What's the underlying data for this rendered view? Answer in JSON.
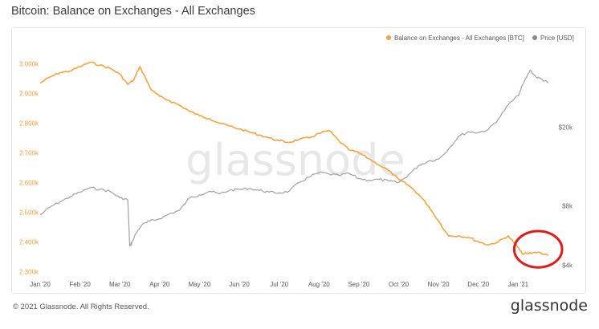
{
  "header": {
    "title": "Bitcoin: Balance on Exchanges - All Exchanges"
  },
  "footer": {
    "copyright": "© 2021 Glassnode. All Rights Reserved.",
    "brand": "glassnode"
  },
  "watermark": "glassnode",
  "colors": {
    "balance": "#f4a340",
    "price": "#a0a0a0",
    "annotation": "#e01b1b",
    "axis_text": "#f0a040",
    "axis_text_right": "#666666"
  },
  "chart_data": {
    "type": "line",
    "title": "Bitcoin: Balance on Exchanges - All Exchanges",
    "legend_position": "top-right",
    "grid": false,
    "x_ticks": [
      "Jan '20",
      "Feb '20",
      "Mar '20",
      "Apr '20",
      "May '20",
      "Jun '20",
      "Jul '20",
      "Aug '20",
      "Sep '20",
      "Oct '20",
      "Nov '20",
      "Dec '20",
      "Jan '21"
    ],
    "x_tick_months": [
      0,
      1,
      2,
      3,
      4,
      5,
      6,
      7,
      8,
      9,
      10,
      11,
      12
    ],
    "x_range_months": [
      0,
      12.9
    ],
    "y_left": {
      "ticks": [
        "2.300k",
        "2.400k",
        "2.500k",
        "2.600k",
        "2.700k",
        "2.800k",
        "2.900k",
        "3.000k"
      ],
      "tick_values": [
        2300000,
        2400000,
        2500000,
        2600000,
        2700000,
        2800000,
        2900000,
        3000000
      ],
      "range": [
        2290000,
        3020000
      ]
    },
    "y_right": {
      "ticks": [
        "$4k",
        "$8k",
        "$20k"
      ],
      "tick_values": [
        4000,
        8000,
        20000
      ],
      "scale": "log",
      "range": [
        3600,
        45000
      ]
    },
    "series": [
      {
        "name": "Balance on Exchanges - All Exchanges [BTC]",
        "axis": "left",
        "x": [
          0,
          0.25,
          0.5,
          0.75,
          1.0,
          1.25,
          1.5,
          1.75,
          2.0,
          2.2,
          2.35,
          2.5,
          2.65,
          2.8,
          3.0,
          3.25,
          3.5,
          3.75,
          4.0,
          4.25,
          4.5,
          4.75,
          5.0,
          5.25,
          5.5,
          5.75,
          6.0,
          6.25,
          6.5,
          6.75,
          7.0,
          7.25,
          7.5,
          7.75,
          8.0,
          8.25,
          8.5,
          8.75,
          9.0,
          9.25,
          9.5,
          9.75,
          10.0,
          10.25,
          10.5,
          10.75,
          11.0,
          11.25,
          11.5,
          11.75,
          12.0,
          12.1,
          12.25,
          12.5,
          12.75
        ],
        "values": [
          2935000,
          2955000,
          2970000,
          2975000,
          2990000,
          3005000,
          2995000,
          2985000,
          2965000,
          2930000,
          2945000,
          2990000,
          2950000,
          2910000,
          2890000,
          2875000,
          2860000,
          2840000,
          2825000,
          2815000,
          2800000,
          2790000,
          2780000,
          2770000,
          2760000,
          2750000,
          2740000,
          2735000,
          2745000,
          2750000,
          2765000,
          2775000,
          2740000,
          2710000,
          2700000,
          2680000,
          2660000,
          2640000,
          2610000,
          2590000,
          2560000,
          2520000,
          2470000,
          2420000,
          2420000,
          2415000,
          2400000,
          2390000,
          2400000,
          2420000,
          2380000,
          2360000,
          2360000,
          2365000,
          2355000
        ]
      },
      {
        "name": "Price [USD]",
        "axis": "right",
        "x": [
          0,
          0.25,
          0.5,
          0.75,
          1.0,
          1.25,
          1.5,
          1.75,
          2.0,
          2.2,
          2.25,
          2.3,
          2.4,
          2.55,
          2.75,
          3.0,
          3.25,
          3.5,
          3.75,
          4.0,
          4.25,
          4.5,
          4.75,
          5.0,
          5.25,
          5.5,
          5.75,
          6.0,
          6.25,
          6.5,
          6.75,
          7.0,
          7.25,
          7.5,
          7.75,
          8.0,
          8.25,
          8.5,
          8.75,
          9.0,
          9.25,
          9.5,
          9.75,
          10.0,
          10.25,
          10.5,
          10.75,
          11.0,
          11.25,
          11.5,
          11.75,
          12.0,
          12.15,
          12.3,
          12.45,
          12.6,
          12.75
        ],
        "values": [
          7200,
          7900,
          8400,
          8900,
          9400,
          9900,
          9700,
          9500,
          8800,
          8600,
          5000,
          5200,
          5800,
          6400,
          6700,
          6900,
          7300,
          7600,
          8800,
          9100,
          9500,
          9200,
          9600,
          9700,
          9800,
          9600,
          9400,
          9300,
          9500,
          10500,
          11200,
          11800,
          11600,
          11400,
          11700,
          11000,
          10800,
          10900,
          10700,
          10500,
          11500,
          12800,
          13500,
          13800,
          15500,
          18000,
          19000,
          18800,
          19500,
          22000,
          26000,
          29000,
          34000,
          39000,
          36000,
          35000,
          33500
        ]
      }
    ],
    "annotations": [
      {
        "type": "ellipse",
        "around_x_months": [
          11.9,
          13.1
        ],
        "around_y_btc": [
          2330000,
          2420000
        ]
      }
    ]
  }
}
